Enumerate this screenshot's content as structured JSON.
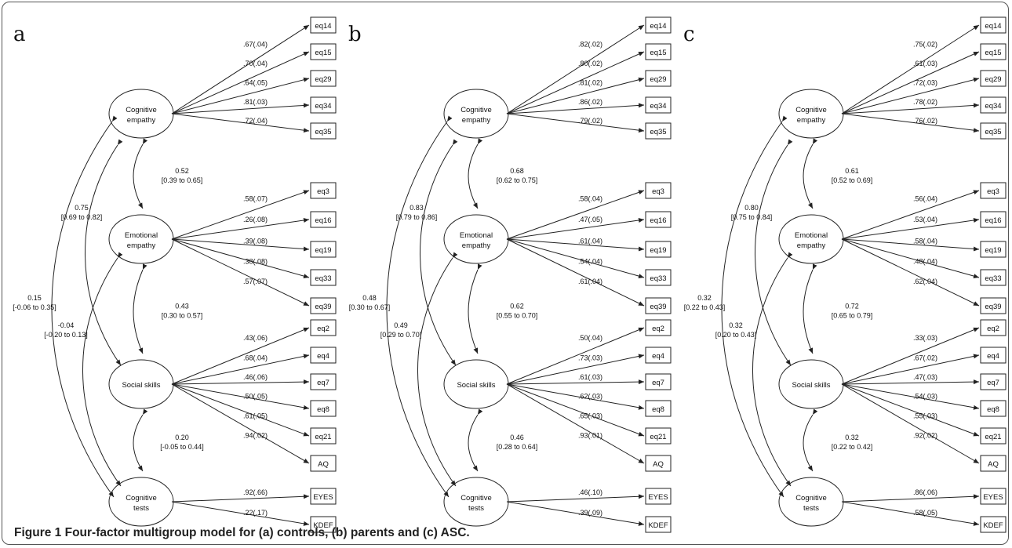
{
  "caption": {
    "figure": "Figure 1",
    "text": "Four-factor multigroup model for (a) controls, (b) parents and (c) ASC."
  },
  "panels": [
    {
      "letter": "a",
      "factors": [
        {
          "label": [
            "Cognitive",
            "empathy"
          ],
          "indicators": [
            {
              "name": "eq14",
              "loading": ".67(.04)"
            },
            {
              "name": "eq15",
              "loading": ".70(.04)"
            },
            {
              "name": "eq29",
              "loading": ".64(.05)"
            },
            {
              "name": "eq34",
              "loading": ".81(.03)"
            },
            {
              "name": "eq35",
              "loading": ".72(.04)"
            }
          ]
        },
        {
          "label": [
            "Emotional",
            "empathy"
          ],
          "indicators": [
            {
              "name": "eq3",
              "loading": ".58(.07)"
            },
            {
              "name": "eq16",
              "loading": ".26(.08)"
            },
            {
              "name": "eq19",
              "loading": ".39(.08)"
            },
            {
              "name": "eq33",
              "loading": ".38(.08)"
            },
            {
              "name": "eq39",
              "loading": ".57(.07)"
            }
          ]
        },
        {
          "label": [
            "Social skills"
          ],
          "indicators": [
            {
              "name": "eq2",
              "loading": ".43(.06)"
            },
            {
              "name": "eq4",
              "loading": ".68(.04)"
            },
            {
              "name": "eq7",
              "loading": ".46(.06)"
            },
            {
              "name": "eq8",
              "loading": ".50(.05)"
            },
            {
              "name": "eq21",
              "loading": ".61(.05)"
            },
            {
              "name": "AQ",
              "loading": ".94(.02)"
            }
          ]
        },
        {
          "label": [
            "Cognitive",
            "tests"
          ],
          "indicators": [
            {
              "name": "EYES",
              "loading": ".92(.66)"
            },
            {
              "name": "KDEF",
              "loading": ".22(.17)"
            }
          ]
        }
      ],
      "correlations": {
        "ce_ee": [
          "0.52",
          "[0.39 to 0.65]"
        ],
        "ee_ss": [
          "0.43",
          "[0.30 to 0.57]"
        ],
        "ss_ct": [
          "0.20",
          "[-0.05 to 0.44]"
        ],
        "ce_ss": [
          "0.75",
          "[0.69 to 0.82]"
        ],
        "ee_ct": [
          "-0.04",
          "[-0.20 to 0.13]"
        ],
        "ce_ct": [
          "0.15",
          "[-0.06 to 0.35]"
        ]
      }
    },
    {
      "letter": "b",
      "factors": [
        {
          "label": [
            "Cognitive",
            "empathy"
          ],
          "indicators": [
            {
              "name": "eq14",
              "loading": ".82(.02)"
            },
            {
              "name": "eq15",
              "loading": ".80(.02)"
            },
            {
              "name": "eq29",
              "loading": ".81(.02)"
            },
            {
              "name": "eq34",
              "loading": ".86(.02)"
            },
            {
              "name": "eq35",
              "loading": ".79(.02)"
            }
          ]
        },
        {
          "label": [
            "Emotional",
            "empathy"
          ],
          "indicators": [
            {
              "name": "eq3",
              "loading": ".58(.04)"
            },
            {
              "name": "eq16",
              "loading": ".47(.05)"
            },
            {
              "name": "eq19",
              "loading": ".61(.04)"
            },
            {
              "name": "eq33",
              "loading": ".54(.04)"
            },
            {
              "name": "eq39",
              "loading": ".61(.04)"
            }
          ]
        },
        {
          "label": [
            "Social skills"
          ],
          "indicators": [
            {
              "name": "eq2",
              "loading": ".50(.04)"
            },
            {
              "name": "eq4",
              "loading": ".73(.03)"
            },
            {
              "name": "eq7",
              "loading": ".61(.03)"
            },
            {
              "name": "eq8",
              "loading": ".62(.03)"
            },
            {
              "name": "eq21",
              "loading": ".65(.03)"
            },
            {
              "name": "AQ",
              "loading": ".93(.01)"
            }
          ]
        },
        {
          "label": [
            "Cognitive",
            "tests"
          ],
          "indicators": [
            {
              "name": "EYES",
              "loading": ".46(.10)"
            },
            {
              "name": "KDEF",
              "loading": ".39(.09)"
            }
          ]
        }
      ],
      "correlations": {
        "ce_ee": [
          "0.68",
          "[0.62 to 0.75]"
        ],
        "ee_ss": [
          "0.62",
          "[0.55 to 0.70]"
        ],
        "ss_ct": [
          "0.46",
          "[0.28 to 0.64]"
        ],
        "ce_ss": [
          "0.83",
          "[0.79 to 0.86]"
        ],
        "ee_ct": [
          "0.49",
          "[0.29 to 0.70]"
        ],
        "ce_ct": [
          "0.48",
          "[0.30 to 0.67]"
        ]
      }
    },
    {
      "letter": "c",
      "factors": [
        {
          "label": [
            "Cognitive",
            "empathy"
          ],
          "indicators": [
            {
              "name": "eq14",
              "loading": ".75(.02)"
            },
            {
              "name": "eq15",
              "loading": ".61(.03)"
            },
            {
              "name": "eq29",
              "loading": ".72(.03)"
            },
            {
              "name": "eq34",
              "loading": ".78(.02)"
            },
            {
              "name": "eq35",
              "loading": ".76(.02)"
            }
          ]
        },
        {
          "label": [
            "Emotional",
            "empathy"
          ],
          "indicators": [
            {
              "name": "eq3",
              "loading": ".56(.04)"
            },
            {
              "name": "eq16",
              "loading": ".53(.04)"
            },
            {
              "name": "eq19",
              "loading": ".58(.04)"
            },
            {
              "name": "eq33",
              "loading": ".48(.04)"
            },
            {
              "name": "eq39",
              "loading": ".62(.04)"
            }
          ]
        },
        {
          "label": [
            "Social skills"
          ],
          "indicators": [
            {
              "name": "eq2",
              "loading": ".33(.03)"
            },
            {
              "name": "eq4",
              "loading": ".67(.02)"
            },
            {
              "name": "eq7",
              "loading": ".47(.03)"
            },
            {
              "name": "eq8",
              "loading": ".54(.03)"
            },
            {
              "name": "eq21",
              "loading": ".55(.03)"
            },
            {
              "name": "AQ",
              "loading": ".92(.02)"
            }
          ]
        },
        {
          "label": [
            "Cognitive",
            "tests"
          ],
          "indicators": [
            {
              "name": "EYES",
              "loading": ".86(.06)"
            },
            {
              "name": "KDEF",
              "loading": ".58(.05)"
            }
          ]
        }
      ],
      "correlations": {
        "ce_ee": [
          "0.61",
          "[0.52 to 0.69]"
        ],
        "ee_ss": [
          "0.72",
          "[0.65 to 0.79]"
        ],
        "ss_ct": [
          "0.32",
          "[0.22 to 0.42]"
        ],
        "ce_ss": [
          "0.80",
          "[0.75 to 0.84]"
        ],
        "ee_ct": [
          "0.32",
          "[0.20 to 0.43]"
        ],
        "ce_ct": [
          "0.32",
          "[0.22 to 0.43]"
        ]
      }
    }
  ]
}
